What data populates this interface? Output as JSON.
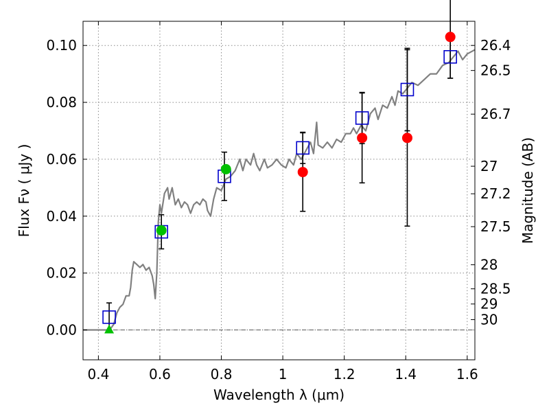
{
  "chart_data": {
    "type": "scatter",
    "xlabel": "Wavelength  λ (μm)",
    "ylabel": "Flux  Fν  ( μJy )",
    "ylabel2": "Magnitude (AB)",
    "xlim": [
      0.35,
      1.625
    ],
    "ylim": [
      -0.0105,
      0.1085
    ],
    "grid": true,
    "x_ticks": [
      0.4,
      0.6,
      0.8,
      1.0,
      1.2,
      1.4,
      1.6
    ],
    "x_tick_labels": [
      "0.4",
      "0.6",
      "0.8",
      "1",
      "1.2",
      "1.4",
      "1.6"
    ],
    "y_ticks": [
      0.0,
      0.02,
      0.04,
      0.06,
      0.08,
      0.1
    ],
    "y_tick_labels": [
      "0.00",
      "0.02",
      "0.04",
      "0.06",
      "0.08",
      "0.10"
    ],
    "mag_ticks": [
      26.4,
      26.5,
      26.7,
      27,
      27.2,
      27.5,
      28,
      28.5,
      29,
      30
    ],
    "mag_tick_labels": [
      "26.4",
      "26.5",
      "26.7",
      "27",
      "27.2",
      "27.5",
      "28",
      "28.5",
      "29",
      "30"
    ],
    "colors": {
      "spectrum": "#808080",
      "model": "#0000cc",
      "detection": "#00c000",
      "measurement": "#ff0000",
      "grid": "#888888",
      "errorbar": "#000000"
    },
    "series": [
      {
        "kind": "line",
        "color": "#808080",
        "points": [
          [
            0.35,
            0.0
          ],
          [
            0.43,
            0.0
          ],
          [
            0.44,
            0.0005
          ],
          [
            0.45,
            0.002
          ],
          [
            0.46,
            0.006
          ],
          [
            0.47,
            0.008
          ],
          [
            0.48,
            0.009
          ],
          [
            0.49,
            0.012
          ],
          [
            0.5,
            0.012
          ],
          [
            0.505,
            0.015
          ],
          [
            0.51,
            0.021
          ],
          [
            0.515,
            0.024
          ],
          [
            0.525,
            0.023
          ],
          [
            0.535,
            0.022
          ],
          [
            0.545,
            0.023
          ],
          [
            0.555,
            0.021
          ],
          [
            0.565,
            0.022
          ],
          [
            0.575,
            0.019
          ],
          [
            0.58,
            0.016
          ],
          [
            0.585,
            0.011
          ],
          [
            0.59,
            0.02
          ],
          [
            0.595,
            0.038
          ],
          [
            0.6,
            0.044
          ],
          [
            0.605,
            0.041
          ],
          [
            0.615,
            0.048
          ],
          [
            0.625,
            0.05
          ],
          [
            0.63,
            0.046
          ],
          [
            0.64,
            0.05
          ],
          [
            0.65,
            0.044
          ],
          [
            0.66,
            0.046
          ],
          [
            0.67,
            0.043
          ],
          [
            0.68,
            0.045
          ],
          [
            0.69,
            0.044
          ],
          [
            0.7,
            0.041
          ],
          [
            0.71,
            0.044
          ],
          [
            0.72,
            0.045
          ],
          [
            0.73,
            0.044
          ],
          [
            0.74,
            0.046
          ],
          [
            0.75,
            0.045
          ],
          [
            0.755,
            0.042
          ],
          [
            0.765,
            0.04
          ],
          [
            0.775,
            0.046
          ],
          [
            0.785,
            0.05
          ],
          [
            0.8,
            0.049
          ],
          [
            0.815,
            0.053
          ],
          [
            0.83,
            0.054
          ],
          [
            0.845,
            0.056
          ],
          [
            0.86,
            0.06
          ],
          [
            0.87,
            0.056
          ],
          [
            0.88,
            0.06
          ],
          [
            0.895,
            0.058
          ],
          [
            0.905,
            0.062
          ],
          [
            0.915,
            0.058
          ],
          [
            0.925,
            0.056
          ],
          [
            0.94,
            0.06
          ],
          [
            0.95,
            0.057
          ],
          [
            0.965,
            0.058
          ],
          [
            0.98,
            0.06
          ],
          [
            0.995,
            0.058
          ],
          [
            1.01,
            0.057
          ],
          [
            1.02,
            0.06
          ],
          [
            1.035,
            0.058
          ],
          [
            1.045,
            0.062
          ],
          [
            1.06,
            0.06
          ],
          [
            1.07,
            0.062
          ],
          [
            1.08,
            0.064
          ],
          [
            1.09,
            0.066
          ],
          [
            1.1,
            0.062
          ],
          [
            1.11,
            0.073
          ],
          [
            1.115,
            0.065
          ],
          [
            1.13,
            0.064
          ],
          [
            1.145,
            0.066
          ],
          [
            1.16,
            0.064
          ],
          [
            1.175,
            0.067
          ],
          [
            1.19,
            0.066
          ],
          [
            1.205,
            0.069
          ],
          [
            1.22,
            0.069
          ],
          [
            1.23,
            0.071
          ],
          [
            1.24,
            0.069
          ],
          [
            1.255,
            0.072
          ],
          [
            1.27,
            0.07
          ],
          [
            1.285,
            0.076
          ],
          [
            1.3,
            0.078
          ],
          [
            1.31,
            0.074
          ],
          [
            1.325,
            0.079
          ],
          [
            1.34,
            0.078
          ],
          [
            1.355,
            0.082
          ],
          [
            1.365,
            0.079
          ],
          [
            1.375,
            0.084
          ],
          [
            1.39,
            0.083
          ],
          [
            1.405,
            0.085
          ],
          [
            1.42,
            0.087
          ],
          [
            1.44,
            0.086
          ],
          [
            1.46,
            0.088
          ],
          [
            1.48,
            0.09
          ],
          [
            1.5,
            0.09
          ],
          [
            1.52,
            0.093
          ],
          [
            1.54,
            0.094
          ],
          [
            1.555,
            0.096
          ],
          [
            1.57,
            0.098
          ],
          [
            1.585,
            0.095
          ],
          [
            1.6,
            0.097
          ],
          [
            1.625,
            0.0985
          ]
        ]
      },
      {
        "kind": "model_squares",
        "color": "#0000cc",
        "points": [
          {
            "x": 0.435,
            "y": 0.0045,
            "err": 0.005
          },
          {
            "x": 0.605,
            "y": 0.0345,
            "err": 0.006
          },
          {
            "x": 0.81,
            "y": 0.054,
            "err": 0.0085
          },
          {
            "x": 1.065,
            "y": 0.064,
            "err": 0.0055
          },
          {
            "x": 1.258,
            "y": 0.0745,
            "err": 0.009
          },
          {
            "x": 1.405,
            "y": 0.0845,
            "err": 0.0145
          },
          {
            "x": 1.545,
            "y": 0.096,
            "err": 0.0075
          }
        ]
      },
      {
        "kind": "detections",
        "color": "#00c000",
        "points": [
          {
            "x": 0.605,
            "y": 0.035
          },
          {
            "x": 0.815,
            "y": 0.0565
          }
        ]
      },
      {
        "kind": "upper_limit",
        "color": "#00c000",
        "points": [
          {
            "x": 0.435,
            "y": 0.0
          }
        ]
      },
      {
        "kind": "measurements",
        "color": "#ff0000",
        "points": [
          {
            "x": 1.065,
            "y": 0.0555,
            "err": 0.0138
          },
          {
            "x": 1.258,
            "y": 0.0675,
            "err": 0.0158
          },
          {
            "x": 1.405,
            "y": 0.0675,
            "err": 0.031
          },
          {
            "x": 1.545,
            "y": 0.103,
            "err": 0.0145
          }
        ]
      }
    ]
  }
}
